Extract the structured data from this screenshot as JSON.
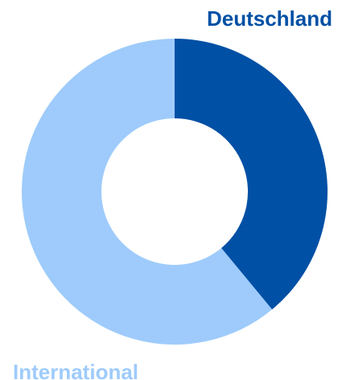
{
  "chart_data": {
    "type": "pie",
    "donut": true,
    "categories": [
      "Deutschland",
      "International"
    ],
    "values": [
      39,
      61
    ],
    "colors": [
      "#0050a5",
      "#9ecbfb"
    ],
    "title": "",
    "legend": "none",
    "labels": {
      "deutschland": "Deutschland",
      "international": "International"
    }
  }
}
